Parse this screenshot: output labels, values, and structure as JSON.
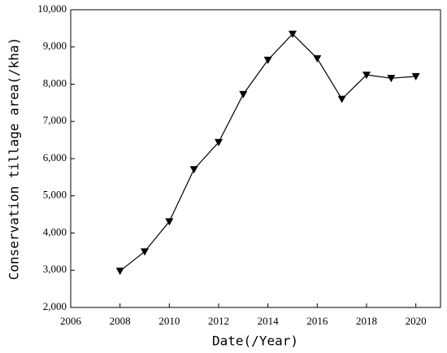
{
  "chart_data": {
    "type": "line",
    "x_label": "Date(/Year)",
    "y_label": "Conservation tillage area(/kha)",
    "x": [
      2008,
      2009,
      2010,
      2011,
      2012,
      2013,
      2014,
      2015,
      2016,
      2017,
      2018,
      2019,
      2020
    ],
    "series": [
      {
        "color": "#000000",
        "values": [
          2980,
          3500,
          4310,
          5710,
          6440,
          7730,
          8650,
          9350,
          8690,
          7600,
          8250,
          8160,
          8210
        ]
      }
    ],
    "xlim": [
      2006,
      2021
    ],
    "xticks": [
      2006,
      2008,
      2010,
      2012,
      2014,
      2016,
      2018,
      2020
    ],
    "ylim": [
      2000,
      10000
    ],
    "yticks": [
      {
        "value": 2000,
        "label": "2,000"
      },
      {
        "value": 3000,
        "label": "3,000"
      },
      {
        "value": 4000,
        "label": "4,000"
      },
      {
        "value": 5000,
        "label": "5,000"
      },
      {
        "value": 6000,
        "label": "6,000"
      },
      {
        "value": 7000,
        "label": "7,000"
      },
      {
        "value": 8000,
        "label": "8,000"
      },
      {
        "value": 9000,
        "label": "9,000"
      },
      {
        "value": 10000,
        "label": "10,000"
      }
    ],
    "marker": "triangle-down"
  }
}
